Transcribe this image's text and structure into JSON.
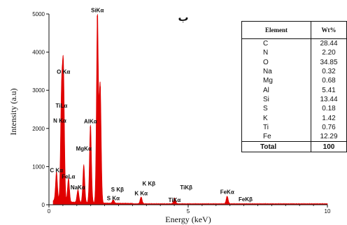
{
  "chart_data": {
    "type": "bar",
    "panel_label": "ب",
    "xlabel": "Energy (keV)",
    "ylabel": "Intensity (a.u)",
    "xlim": [
      0,
      10
    ],
    "ylim": [
      0,
      5000
    ],
    "x_ticks": [
      "0",
      "5",
      "10"
    ],
    "y_ticks": [
      "0",
      "1000",
      "2000",
      "3000",
      "4000",
      "5000"
    ],
    "grid": false,
    "peaks": [
      {
        "x": 0.27,
        "y": 780
      },
      {
        "x": 0.52,
        "y": 3350
      },
      {
        "x": 0.45,
        "y": 2700
      },
      {
        "x": 0.7,
        "y": 620
      },
      {
        "x": 1.04,
        "y": 330
      },
      {
        "x": 1.25,
        "y": 1000
      },
      {
        "x": 1.49,
        "y": 2050
      },
      {
        "x": 1.74,
        "y": 4960
      },
      {
        "x": 1.84,
        "y": 3100
      },
      {
        "x": 2.31,
        "y": 90
      },
      {
        "x": 3.31,
        "y": 180
      },
      {
        "x": 4.51,
        "y": 150
      },
      {
        "x": 6.4,
        "y": 200
      }
    ],
    "annotations": [
      {
        "text": "SiKα",
        "x": 1.74,
        "y": 5050
      },
      {
        "text": "O Kα",
        "x": 0.52,
        "y": 3430
      },
      {
        "text": "TiLα",
        "x": 0.45,
        "y": 2550
      },
      {
        "text": "N Kα",
        "x": 0.39,
        "y": 2150
      },
      {
        "text": "AlKα",
        "x": 1.49,
        "y": 2130
      },
      {
        "text": "MgKα",
        "x": 1.25,
        "y": 1420
      },
      {
        "text": "C Kα",
        "x": 0.27,
        "y": 850
      },
      {
        "text": "FeLα",
        "x": 0.7,
        "y": 690
      },
      {
        "text": "NaKα",
        "x": 1.04,
        "y": 400
      },
      {
        "text": "S Kβ",
        "x": 2.46,
        "y": 350
      },
      {
        "text": "K Kβ",
        "x": 3.59,
        "y": 500
      },
      {
        "text": "TiKβ",
        "x": 4.93,
        "y": 400
      },
      {
        "text": "S Kα",
        "x": 2.31,
        "y": 120
      },
      {
        "text": "K Kα",
        "x": 3.31,
        "y": 250
      },
      {
        "text": "TiKα",
        "x": 4.51,
        "y": 70
      },
      {
        "text": "FeKα",
        "x": 6.4,
        "y": 280
      },
      {
        "text": "FeKβ",
        "x": 7.06,
        "y": 90
      }
    ],
    "table": {
      "headers": [
        "Element",
        "Wt%"
      ],
      "rows": [
        {
          "element": "C",
          "wt": "28.44"
        },
        {
          "element": "N",
          "wt": "2.20"
        },
        {
          "element": "O",
          "wt": "34.85"
        },
        {
          "element": "Na",
          "wt": "0.32"
        },
        {
          "element": "Mg",
          "wt": "0.68"
        },
        {
          "element": "Al",
          "wt": "5.41"
        },
        {
          "element": "Si",
          "wt": "13.44"
        },
        {
          "element": "S",
          "wt": "0.18"
        },
        {
          "element": "K",
          "wt": "1.42"
        },
        {
          "element": "Ti",
          "wt": "0.76"
        },
        {
          "element": "Fe",
          "wt": "12.29"
        }
      ],
      "total": {
        "label": "Total",
        "value": "100"
      }
    },
    "colors": {
      "spectrum": "#e00000",
      "axis": "#111111"
    }
  }
}
